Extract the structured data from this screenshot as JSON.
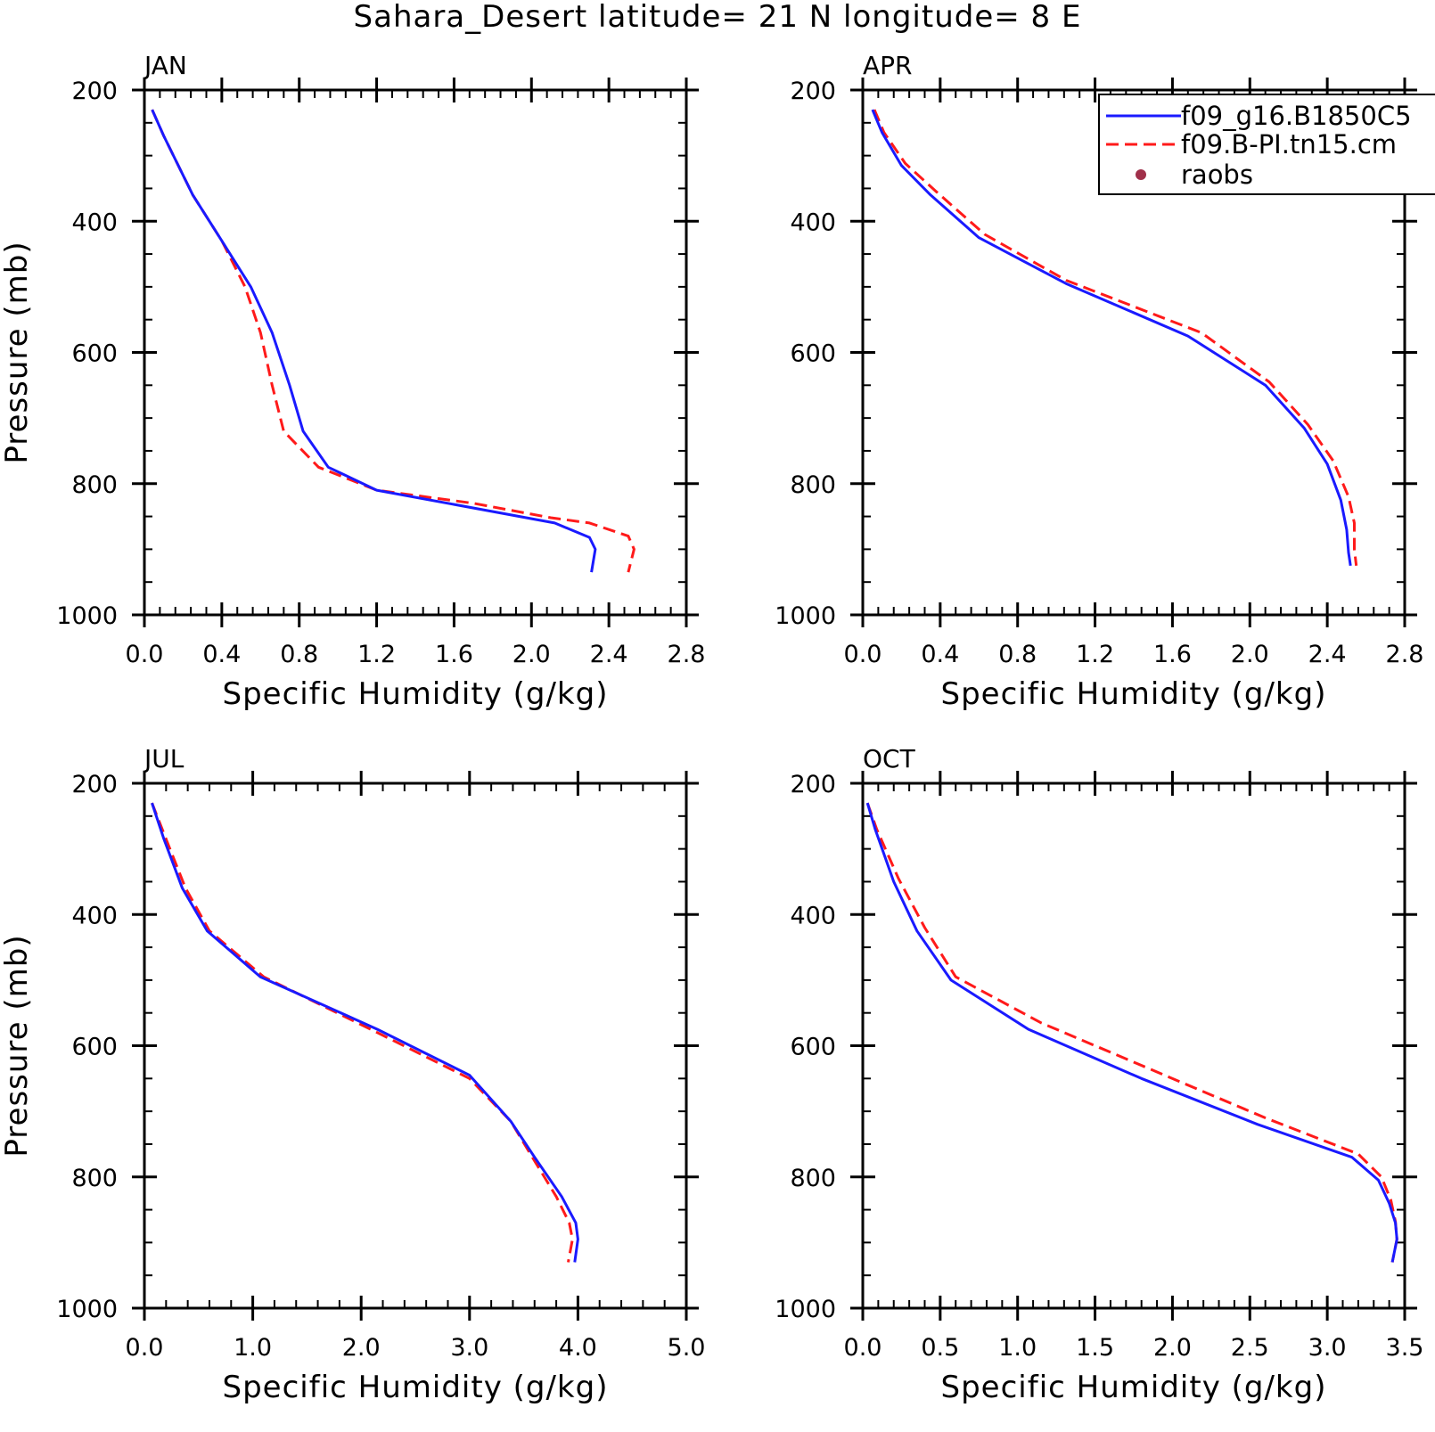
{
  "title": "Sahara_Desert  latitude= 21 N longitude= 8 E",
  "colors": {
    "series_solid": "#1a1aff",
    "series_dashed": "#ff1a1a",
    "raobs_marker": "#a0304a",
    "axes": "#000000"
  },
  "legend": {
    "placement": "top-right of APR panel",
    "entries": [
      {
        "label": "f09_g16.B1850C5",
        "style": "solid",
        "color": "#1a1aff"
      },
      {
        "label": "f09.B-PI.tn15.cm",
        "style": "dashed",
        "color": "#ff1a1a"
      },
      {
        "label": "raobs",
        "style": "dot",
        "color": "#a0304a"
      }
    ]
  },
  "chart_data": [
    {
      "type": "line",
      "panel": "JAN",
      "xlabel": "Specific Humidity (g/kg)",
      "ylabel": "Pressure (mb)",
      "xlim": [
        0,
        2.8
      ],
      "ylim": [
        1000,
        200
      ],
      "y_inverted": true,
      "xticks": [
        "0.0",
        "0.4",
        "0.8",
        "1.2",
        "1.6",
        "2.0",
        "2.4",
        "2.8"
      ],
      "yticks": [
        "200",
        "400",
        "600",
        "800",
        "1000"
      ],
      "series": [
        {
          "name": "f09_g16.B1850C5",
          "style": "solid",
          "x": [
            0.04,
            0.1,
            0.25,
            0.4,
            0.55,
            0.66,
            0.75,
            0.82,
            0.95,
            1.2,
            2.12,
            2.3,
            2.33,
            2.31
          ],
          "y": [
            230,
            270,
            360,
            430,
            500,
            570,
            650,
            720,
            775,
            810,
            860,
            882,
            900,
            935
          ]
        },
        {
          "name": "f09.B-PI.tn15.cm",
          "style": "dashed",
          "x": [
            0.04,
            0.1,
            0.25,
            0.4,
            0.52,
            0.6,
            0.66,
            0.72,
            0.9,
            1.2,
            1.7,
            2.1,
            2.3,
            2.5,
            2.53,
            2.5
          ],
          "y": [
            230,
            270,
            360,
            430,
            500,
            570,
            650,
            720,
            775,
            810,
            830,
            852,
            860,
            880,
            900,
            935
          ]
        },
        {
          "name": "raobs",
          "style": "dot",
          "x": [],
          "y": []
        }
      ]
    },
    {
      "type": "line",
      "panel": "APR",
      "xlabel": "Specific Humidity (g/kg)",
      "ylabel": "",
      "xlim": [
        0,
        2.8
      ],
      "ylim": [
        1000,
        200
      ],
      "y_inverted": true,
      "xticks": [
        "0.0",
        "0.4",
        "0.8",
        "1.2",
        "1.6",
        "2.0",
        "2.4",
        "2.8"
      ],
      "yticks": [
        "200",
        "400",
        "600",
        "800",
        "1000"
      ],
      "series": [
        {
          "name": "f09_g16.B1850C5",
          "style": "solid",
          "x": [
            0.05,
            0.1,
            0.2,
            0.35,
            0.6,
            1.05,
            1.68,
            2.08,
            2.28,
            2.4,
            2.47,
            2.5,
            2.51,
            2.52
          ],
          "y": [
            230,
            265,
            315,
            360,
            425,
            495,
            575,
            650,
            715,
            770,
            825,
            870,
            905,
            925
          ]
        },
        {
          "name": "f09.B-PI.tn15.cm",
          "style": "dashed",
          "x": [
            0.06,
            0.11,
            0.22,
            0.38,
            0.63,
            1.05,
            1.75,
            2.1,
            2.3,
            2.43,
            2.51,
            2.54,
            2.54,
            2.55
          ],
          "y": [
            230,
            265,
            312,
            355,
            420,
            490,
            570,
            645,
            710,
            765,
            820,
            860,
            900,
            925
          ]
        },
        {
          "name": "raobs",
          "style": "dot",
          "x": [],
          "y": []
        }
      ]
    },
    {
      "type": "line",
      "panel": "JUL",
      "xlabel": "Specific Humidity (g/kg)",
      "ylabel": "Pressure (mb)",
      "xlim": [
        0,
        5.0
      ],
      "ylim": [
        1000,
        200
      ],
      "y_inverted": true,
      "xticks": [
        "0.0",
        "1.0",
        "2.0",
        "3.0",
        "4.0",
        "5.0"
      ],
      "yticks": [
        "200",
        "400",
        "600",
        "800",
        "1000"
      ],
      "series": [
        {
          "name": "f09_g16.B1850C5",
          "style": "solid",
          "x": [
            0.07,
            0.18,
            0.35,
            0.58,
            1.07,
            2.15,
            3.0,
            3.38,
            3.6,
            3.85,
            3.98,
            4.0,
            3.97
          ],
          "y": [
            230,
            285,
            360,
            425,
            495,
            575,
            645,
            715,
            770,
            830,
            870,
            895,
            930
          ]
        },
        {
          "name": "f09.B-PI.tn15.cm",
          "style": "dashed",
          "x": [
            0.07,
            0.2,
            0.38,
            0.6,
            1.1,
            2.15,
            3.0,
            3.38,
            3.58,
            3.8,
            3.92,
            3.95,
            3.91
          ],
          "y": [
            230,
            285,
            360,
            425,
            495,
            580,
            650,
            715,
            770,
            830,
            870,
            895,
            930
          ]
        },
        {
          "name": "raobs",
          "style": "dot",
          "x": [],
          "y": []
        }
      ]
    },
    {
      "type": "line",
      "panel": "OCT",
      "xlabel": "Specific Humidity (g/kg)",
      "ylabel": "",
      "xlim": [
        0,
        3.5
      ],
      "ylim": [
        1000,
        200
      ],
      "y_inverted": true,
      "xticks": [
        "0.0",
        "0.5",
        "1.0",
        "1.5",
        "2.0",
        "2.5",
        "3.0",
        "3.5"
      ],
      "yticks": [
        "200",
        "400",
        "600",
        "800",
        "1000"
      ],
      "series": [
        {
          "name": "f09_g16.B1850C5",
          "style": "solid",
          "x": [
            0.03,
            0.08,
            0.2,
            0.35,
            0.57,
            1.07,
            1.8,
            2.55,
            3.16,
            3.33,
            3.4,
            3.44,
            3.45,
            3.42
          ],
          "y": [
            230,
            270,
            350,
            425,
            500,
            575,
            650,
            720,
            770,
            805,
            840,
            870,
            895,
            930
          ]
        },
        {
          "name": "f09.B-PI.tn15.cm",
          "style": "dashed",
          "x": [
            0.03,
            0.09,
            0.23,
            0.4,
            0.6,
            1.15,
            1.9,
            2.6,
            3.2,
            3.35,
            3.41,
            3.44,
            3.45,
            3.42
          ],
          "y": [
            230,
            270,
            345,
            420,
            495,
            565,
            640,
            710,
            765,
            800,
            835,
            868,
            895,
            930
          ]
        },
        {
          "name": "raobs",
          "style": "dot",
          "x": [],
          "y": []
        }
      ]
    }
  ]
}
